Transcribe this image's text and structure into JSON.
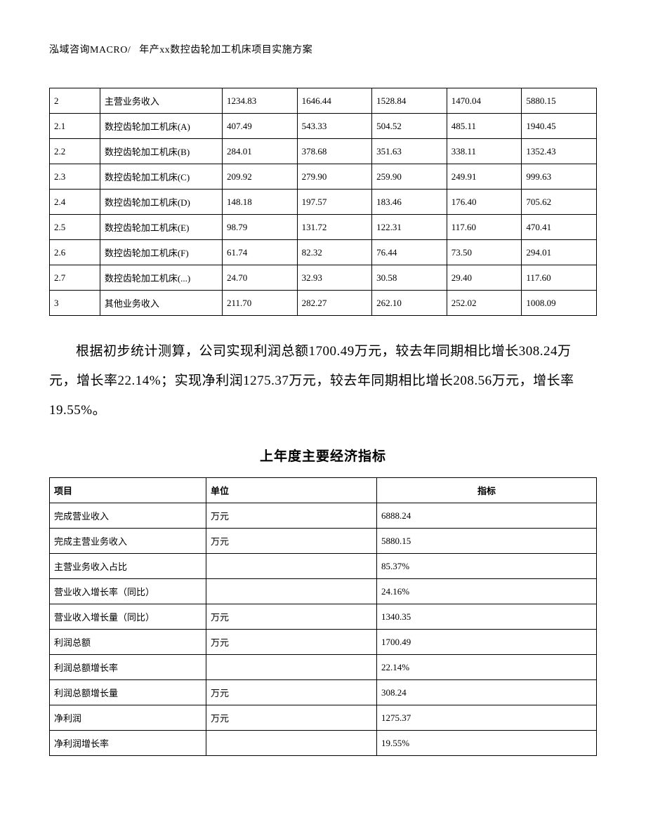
{
  "header": {
    "left": "泓域咨询MACRO/",
    "right": "年产xx数控齿轮加工机床项目实施方案"
  },
  "table1": {
    "rows": [
      [
        "2",
        "主营业务收入",
        "1234.83",
        "1646.44",
        "1528.84",
        "1470.04",
        "5880.15"
      ],
      [
        "2.1",
        "数控齿轮加工机床(A)",
        "407.49",
        "543.33",
        "504.52",
        "485.11",
        "1940.45"
      ],
      [
        "2.2",
        "数控齿轮加工机床(B)",
        "284.01",
        "378.68",
        "351.63",
        "338.11",
        "1352.43"
      ],
      [
        "2.3",
        "数控齿轮加工机床(C)",
        "209.92",
        "279.90",
        "259.90",
        "249.91",
        "999.63"
      ],
      [
        "2.4",
        "数控齿轮加工机床(D)",
        "148.18",
        "197.57",
        "183.46",
        "176.40",
        "705.62"
      ],
      [
        "2.5",
        "数控齿轮加工机床(E)",
        "98.79",
        "131.72",
        "122.31",
        "117.60",
        "470.41"
      ],
      [
        "2.6",
        "数控齿轮加工机床(F)",
        "61.74",
        "82.32",
        "76.44",
        "73.50",
        "294.01"
      ],
      [
        "2.7",
        "数控齿轮加工机床(...)",
        "24.70",
        "32.93",
        "30.58",
        "29.40",
        "117.60"
      ],
      [
        "3",
        "其他业务收入",
        "211.70",
        "282.27",
        "262.10",
        "252.02",
        "1008.09"
      ]
    ]
  },
  "paragraph": "根据初步统计测算，公司实现利润总额1700.49万元，较去年同期相比增长308.24万元，增长率22.14%；实现净利润1275.37万元，较去年同期相比增长208.56万元，增长率19.55%。",
  "section_title": "上年度主要经济指标",
  "table2": {
    "headers": [
      "项目",
      "单位",
      "指标"
    ],
    "rows": [
      [
        "完成营业收入",
        "万元",
        "6888.24"
      ],
      [
        "完成主营业务收入",
        "万元",
        "5880.15"
      ],
      [
        "主营业务收入占比",
        "",
        "85.37%"
      ],
      [
        "营业收入增长率（同比）",
        "",
        "24.16%"
      ],
      [
        "营业收入增长量（同比）",
        "万元",
        "1340.35"
      ],
      [
        "利润总额",
        "万元",
        "1700.49"
      ],
      [
        "利润总额增长率",
        "",
        "22.14%"
      ],
      [
        "利润总额增长量",
        "万元",
        "308.24"
      ],
      [
        "净利润",
        "万元",
        "1275.37"
      ],
      [
        "净利润增长率",
        "",
        "19.55%"
      ]
    ]
  }
}
